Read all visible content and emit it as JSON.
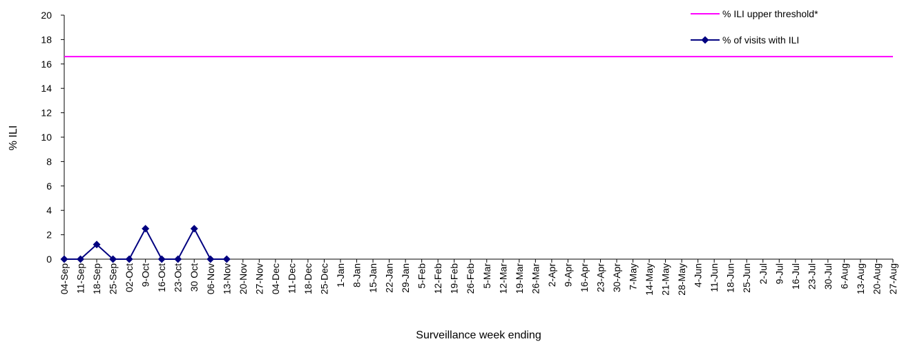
{
  "chart_data": {
    "type": "line",
    "x_label": "Surveillance week ending",
    "y_label": "% ILI",
    "categories": [
      "04-Sep",
      "11-Sep",
      "18-Sep",
      "25-Sep",
      "02-Oct",
      "9-Oct",
      "16-Oct",
      "23-Oct",
      "30 Oct",
      "06-Nov",
      "13-Nov",
      "20-Nov",
      "27-Nov",
      "04-Dec",
      "11-Dec",
      "18-Dec",
      "25-Dec",
      "1-Jan",
      "8-Jan",
      "15-Jan",
      "22-Jan",
      "29-Jan",
      "5-Feb",
      "12-Feb",
      "19-Feb",
      "26-Feb",
      "5-Mar",
      "12-Mar",
      "19-Mar",
      "26-Mar",
      "2-Apr",
      "9-Apr",
      "16-Apr",
      "23-Apr",
      "30-Apr",
      "7-May",
      "14-May",
      "21-May",
      "28-May",
      "4-Jun",
      "11-Jun",
      "18-Jun",
      "25-Jun",
      "2-Jul",
      "9-Jul",
      "16-Jul",
      "23-Jul",
      "30-Jul",
      "6-Aug",
      "13-Aug",
      "20-Aug",
      "27-Aug"
    ],
    "reference_line": {
      "name": "% ILI upper threshold*",
      "color": "#ff00ff",
      "value": 16.6
    },
    "series": [
      {
        "name": "% of visits with ILI",
        "color": "#000080",
        "values": [
          0,
          0,
          1.2,
          0,
          0,
          2.5,
          0,
          0,
          2.5,
          0,
          0,
          null,
          null,
          null,
          null,
          null,
          null,
          null,
          null,
          null,
          null,
          null,
          null,
          null,
          null,
          null,
          null,
          null,
          null,
          null,
          null,
          null,
          null,
          null,
          null,
          null,
          null,
          null,
          null,
          null,
          null,
          null,
          null,
          null,
          null,
          null,
          null,
          null,
          null,
          null,
          null,
          null
        ]
      }
    ],
    "ylim": [
      0,
      20
    ],
    "yticks": [
      0,
      2,
      4,
      6,
      8,
      10,
      12,
      14,
      16,
      18,
      20
    ],
    "legend": "top-right"
  }
}
